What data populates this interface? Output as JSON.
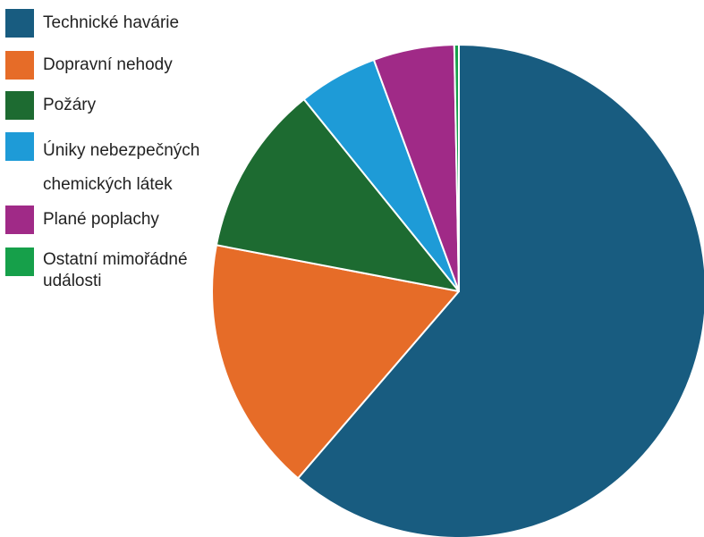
{
  "chart_data": {
    "type": "pie",
    "title": "",
    "legend_position": "top-left",
    "slices": [
      {
        "label": "Technické havárie",
        "value": 61.3,
        "color": "#185C80"
      },
      {
        "label": "Dopravní nehody",
        "value": 16.7,
        "color": "#E66C28"
      },
      {
        "label": "Požáry",
        "value": 11.2,
        "color": "#1D6B31"
      },
      {
        "label": "Úniky nebezpečných chemických látek",
        "value": 5.2,
        "color": "#1E9BD7"
      },
      {
        "label": "Plané poplachy",
        "value": 5.3,
        "color": "#A02A87"
      },
      {
        "label": "Ostatní mimořádné události",
        "value": 0.3,
        "color": "#16A04A"
      }
    ]
  }
}
